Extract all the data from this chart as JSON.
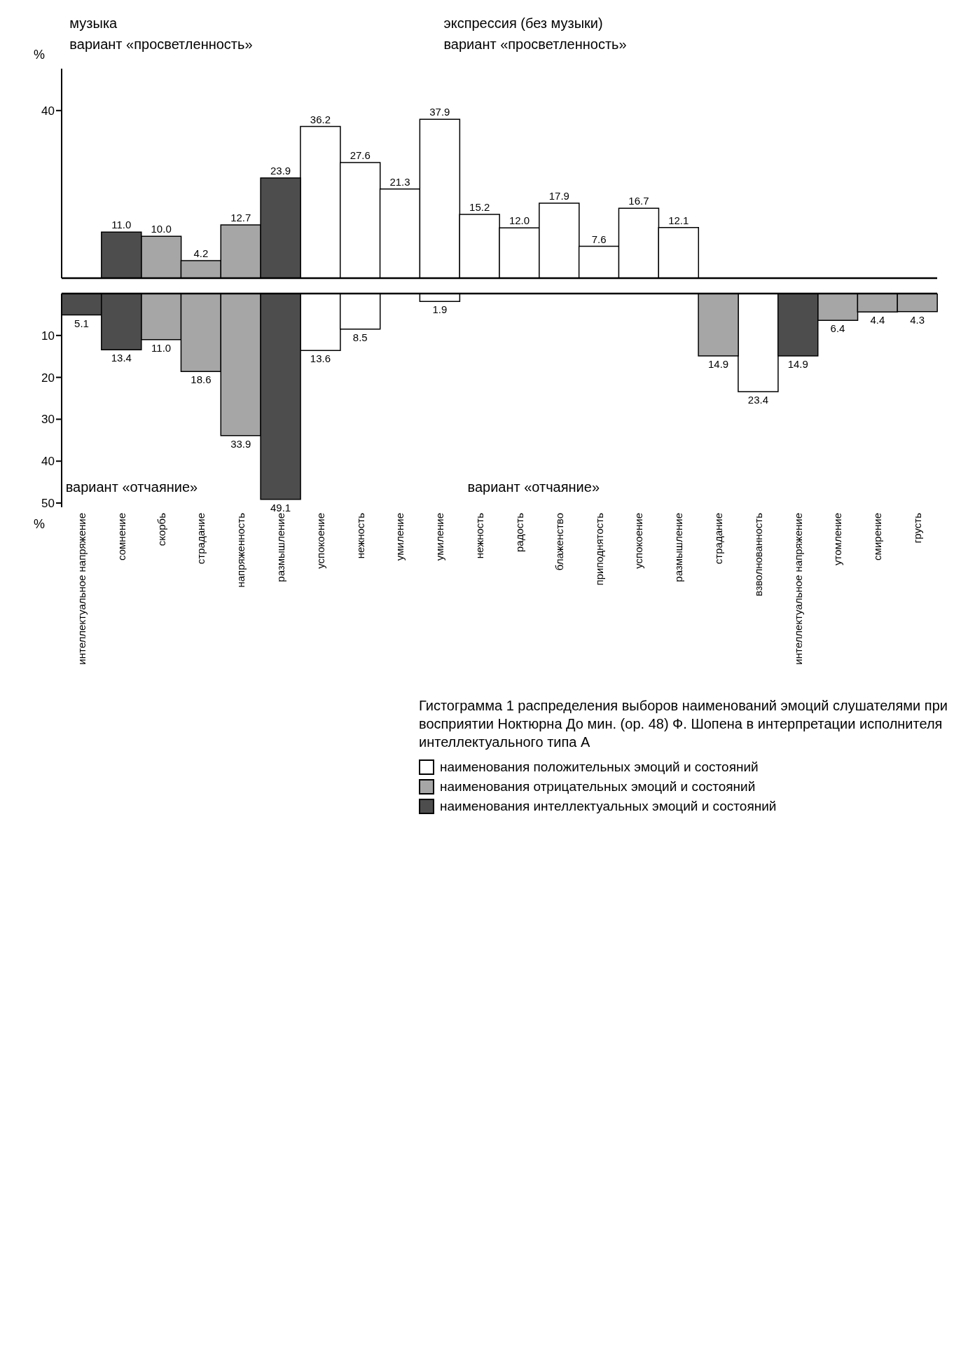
{
  "chart_data": [
    {
      "type": "bar",
      "stacked": true,
      "ylabel": "%",
      "ylim": [
        0,
        50
      ],
      "yticks": [
        40
      ],
      "tick_labels": "y",
      "annotations": [
        "музыка",
        "вариант «просветленность»",
        "экспрессия (без музыки)",
        "вариант «просветленность»"
      ],
      "categories": [
        "интеллектуальное напряжение",
        "сомнение",
        "скорбь",
        "страдание",
        "напряженность",
        "размышление",
        "успокоение",
        "нежность",
        "умиление",
        "умиление",
        "нежность",
        "радость",
        "блаженство",
        "приподнятость",
        "успокоение",
        "размышление",
        "страдание",
        "взволнованность",
        "интеллектуальное напряжение",
        "утомление",
        "смирение",
        "грусть"
      ],
      "series": [
        {
          "color": "#ffffff",
          "values": [
            null,
            null,
            null,
            null,
            null,
            null,
            36.2,
            27.6,
            21.3,
            37.9,
            15.2,
            12.0,
            17.9,
            7.6,
            16.7,
            12.1,
            null,
            null,
            null,
            null,
            null,
            null
          ],
          "value_labels": [
            null,
            null,
            null,
            null,
            null,
            null,
            "36.2",
            "27.6",
            "21.3",
            "37.9",
            "15.2",
            "12.0",
            "17.9",
            "7.6",
            "16.7",
            "12.1",
            null,
            null,
            null,
            null,
            null,
            null
          ]
        },
        {
          "color": "#a6a6a6",
          "values": [
            null,
            null,
            10.0,
            4.2,
            12.7,
            null,
            null,
            null,
            null,
            null,
            null,
            null,
            null,
            null,
            null,
            null,
            null,
            null,
            null,
            null,
            null,
            null
          ],
          "value_labels": [
            null,
            null,
            "10.0",
            "4.2",
            "12.7",
            null,
            null,
            null,
            null,
            null,
            null,
            null,
            null,
            null,
            null,
            null,
            null,
            null,
            null,
            null,
            null,
            null
          ]
        },
        {
          "color": "#4d4d4d",
          "values": [
            null,
            11.0,
            null,
            null,
            null,
            23.9,
            null,
            null,
            null,
            null,
            null,
            null,
            null,
            null,
            null,
            null,
            null,
            null,
            null,
            null,
            null,
            null
          ],
          "value_labels": [
            null,
            "11.0",
            null,
            null,
            null,
            "23.9",
            null,
            null,
            null,
            null,
            null,
            null,
            null,
            null,
            null,
            null,
            null,
            null,
            null,
            null,
            null,
            null
          ]
        }
      ]
    },
    {
      "type": "bar",
      "stacked": true,
      "ylabel": "%",
      "ylim": [
        51,
        0
      ],
      "yticks": [
        10,
        20,
        30,
        40,
        50
      ],
      "legend": "bottom right",
      "title": "Гистограмма 1 распределения выборов наименований эмоций слушателями при восприятии Ноктюрна До мин. (ор. 48) Ф. Шопена в интерпретации исполнителя интеллектуального типа А",
      "annotations": [
        "вариант «отчаяние»",
        "вариант «отчаяние»"
      ],
      "categories": [
        "интеллектуальное напряжение",
        "сомнение",
        "скорбь",
        "страдание",
        "напряженность",
        "размышление",
        "успокоение",
        "нежность",
        "умиление",
        "умиление",
        "нежность",
        "радость",
        "блаженство",
        "приподнятость",
        "успокоение",
        "размышление",
        "страдание",
        "взволнованность",
        "интеллектуальное напряжение",
        "утомление",
        "смирение",
        "грусть"
      ],
      "series": [
        {
          "name": "наименования положительных эмоций и состояний",
          "color": "#ffffff",
          "values": [
            null,
            null,
            null,
            null,
            null,
            null,
            13.6,
            8.5,
            null,
            1.9,
            null,
            null,
            null,
            null,
            null,
            null,
            null,
            23.4,
            null,
            null,
            null,
            null
          ],
          "value_labels": [
            null,
            null,
            null,
            null,
            null,
            null,
            "13.6",
            "8.5",
            null,
            "1.9",
            null,
            null,
            null,
            null,
            null,
            null,
            null,
            "23.4",
            null,
            null,
            null,
            null
          ]
        },
        {
          "name": "наименования отрицательных эмоций и состояний",
          "color": "#a6a6a6",
          "values": [
            null,
            null,
            11.0,
            18.6,
            33.9,
            null,
            null,
            null,
            null,
            null,
            null,
            null,
            null,
            null,
            null,
            null,
            14.9,
            null,
            null,
            6.4,
            4.4,
            4.3
          ],
          "value_labels": [
            null,
            null,
            "11.0",
            "18.6",
            "33.9",
            null,
            null,
            null,
            null,
            null,
            null,
            null,
            null,
            null,
            null,
            null,
            "14.9",
            null,
            null,
            "6.4",
            "4.4",
            "4.3"
          ]
        },
        {
          "name": "наименования интеллектуальных эмоций и состояний",
          "color": "#4d4d4d",
          "values": [
            5.1,
            13.4,
            null,
            null,
            null,
            49.1,
            null,
            null,
            null,
            null,
            null,
            null,
            null,
            null,
            null,
            null,
            null,
            null,
            14.9,
            null,
            null,
            null
          ],
          "value_labels": [
            "5.1",
            "13.4",
            null,
            null,
            null,
            "49.1",
            null,
            null,
            null,
            null,
            null,
            null,
            null,
            null,
            null,
            null,
            null,
            null,
            "14.9",
            null,
            null,
            null
          ]
        }
      ]
    }
  ]
}
